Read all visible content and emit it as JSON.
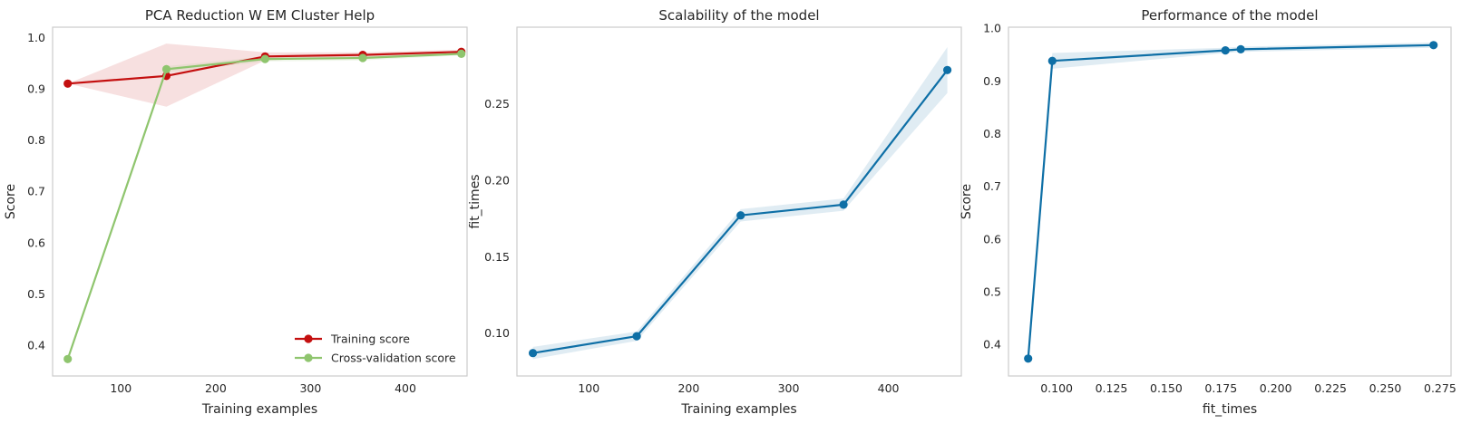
{
  "chart_data": [
    {
      "type": "line",
      "title": "PCA Reduction W EM Cluster Help",
      "xlabel": "Training examples",
      "ylabel": "Score",
      "xlim": [
        28,
        465
      ],
      "ylim": [
        0.34,
        1.02
      ],
      "xticks": [
        100,
        200,
        300,
        400
      ],
      "yticks": [
        0.4,
        0.5,
        0.6,
        0.7,
        0.8,
        0.9,
        1.0
      ],
      "x": [
        44,
        148,
        252,
        355,
        459
      ],
      "series": [
        {
          "name": "Training score",
          "color": "#c40f0f",
          "values": [
            0.91,
            0.925,
            0.963,
            0.966,
            0.972
          ],
          "band_low": [
            0.91,
            0.865,
            0.955,
            0.962,
            0.969
          ],
          "band_high": [
            0.91,
            0.988,
            0.971,
            0.971,
            0.976
          ]
        },
        {
          "name": "Cross-validation score",
          "color": "#8fc56e",
          "values": [
            0.373,
            0.938,
            0.958,
            0.96,
            0.968
          ],
          "band_low": [
            0.373,
            0.932,
            0.953,
            0.955,
            0.965
          ],
          "band_high": [
            0.373,
            0.944,
            0.963,
            0.965,
            0.972
          ]
        }
      ],
      "legend": "lower-right",
      "grid": false
    },
    {
      "type": "line",
      "title": "Scalability of the model",
      "xlabel": "Training examples",
      "ylabel": "fit_times",
      "xlim": [
        28,
        473
      ],
      "ylim": [
        0.072,
        0.3
      ],
      "xticks": [
        100,
        200,
        300,
        400
      ],
      "yticks": [
        0.1,
        0.15,
        0.2,
        0.25
      ],
      "x": [
        44,
        148,
        252,
        355,
        459
      ],
      "series": [
        {
          "name": "",
          "color": "#0e6fa6",
          "values": [
            0.087,
            0.098,
            0.177,
            0.184,
            0.272
          ],
          "band_low": [
            0.083,
            0.095,
            0.173,
            0.18,
            0.257
          ],
          "band_high": [
            0.091,
            0.101,
            0.181,
            0.188,
            0.287
          ]
        }
      ],
      "grid": false
    },
    {
      "type": "line",
      "title": "Performance of the model",
      "xlabel": "fit_times",
      "ylabel": "Score",
      "xlim": [
        0.078,
        0.28
      ],
      "ylim": [
        0.34,
        1.002
      ],
      "xticks": [
        0.1,
        0.125,
        0.15,
        0.175,
        0.2,
        0.225,
        0.25,
        0.275
      ],
      "xticklabels": [
        "0.100",
        "0.125",
        "0.150",
        "0.175",
        "0.200",
        "0.225",
        "0.250",
        "0.275"
      ],
      "yticks": [
        0.4,
        0.5,
        0.6,
        0.7,
        0.8,
        0.9,
        1.0
      ],
      "x": [
        0.087,
        0.098,
        0.177,
        0.184,
        0.272
      ],
      "series": [
        {
          "name": "",
          "color": "#0e6fa6",
          "values": [
            0.373,
            0.938,
            0.958,
            0.96,
            0.968
          ],
          "band_low": [
            0.373,
            0.923,
            0.953,
            0.955,
            0.963
          ],
          "band_high": [
            0.373,
            0.953,
            0.963,
            0.965,
            0.973
          ]
        }
      ],
      "grid": false
    }
  ]
}
